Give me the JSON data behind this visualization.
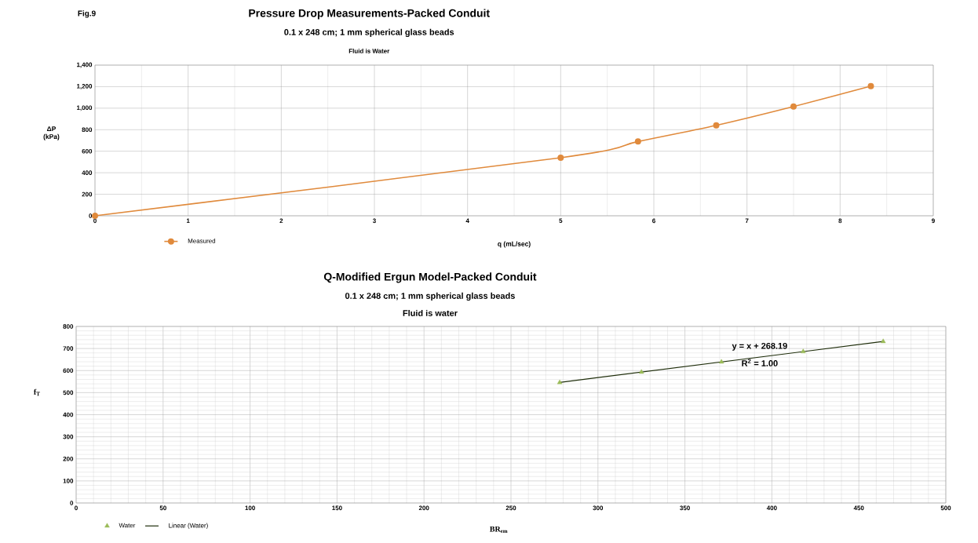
{
  "chart_data": [
    {
      "type": "line",
      "title": "Pressure Drop Measurements-Packed Conduit",
      "subtitle": "0.1 x 248 cm; 1 mm spherical glass beads",
      "annotations": [
        "Fig.9",
        "Fluid is Water"
      ],
      "xlabel": "q (mL/sec)",
      "ylabel": "ΔP (kPa)",
      "x": [
        0,
        5,
        5.83,
        6.67,
        7.5,
        8.33
      ],
      "series": [
        {
          "name": "Measured",
          "color": "#e08a3c",
          "values": [
            0,
            540,
            690,
            840,
            1015,
            1205
          ]
        }
      ],
      "xlim": [
        0,
        9
      ],
      "ylim": [
        0,
        1400
      ],
      "xticks": [
        0,
        1,
        2,
        3,
        4,
        5,
        6,
        7,
        8,
        9
      ],
      "yticks": [
        0,
        200,
        400,
        600,
        800,
        {
          "value": 1000,
          "label": "1,000"
        },
        {
          "value": 1200,
          "label": "1,200"
        },
        {
          "value": 1400,
          "label": "1,400"
        }
      ],
      "grid": true,
      "legend": "bottom left",
      "marker": "circle"
    },
    {
      "type": "scatter",
      "title": "Q-Modified Ergun Model-Packed Conduit",
      "subtitle": "0.1 x 248 cm; 1 mm spherical glass beads",
      "annotations": [
        "Fluid is water",
        "y = x + 268.19",
        "R$^{2}$ = 1.00"
      ],
      "xlabel": "BR$_{em}$",
      "ylabel": "f$_{T}$",
      "x": [
        278,
        325,
        371,
        418,
        464
      ],
      "series": [
        {
          "name": "Water",
          "color": "#9bbb59",
          "values": [
            546,
            593,
            639,
            686,
            732
          ]
        },
        {
          "name": "Linear (Water)",
          "type": "line",
          "color": "#1e2d0a",
          "x": [
            278,
            464
          ],
          "values": [
            546,
            732
          ],
          "marker": "none"
        }
      ],
      "xlim": [
        0,
        500
      ],
      "ylim": [
        0,
        800
      ],
      "xticks": [
        0,
        50,
        100,
        150,
        200,
        250,
        300,
        350,
        400,
        450,
        500
      ],
      "yticks": [
        0,
        100,
        200,
        300,
        400,
        500,
        600,
        700,
        800
      ],
      "grid": true,
      "legend": "bottom left",
      "marker": "triangle"
    }
  ]
}
